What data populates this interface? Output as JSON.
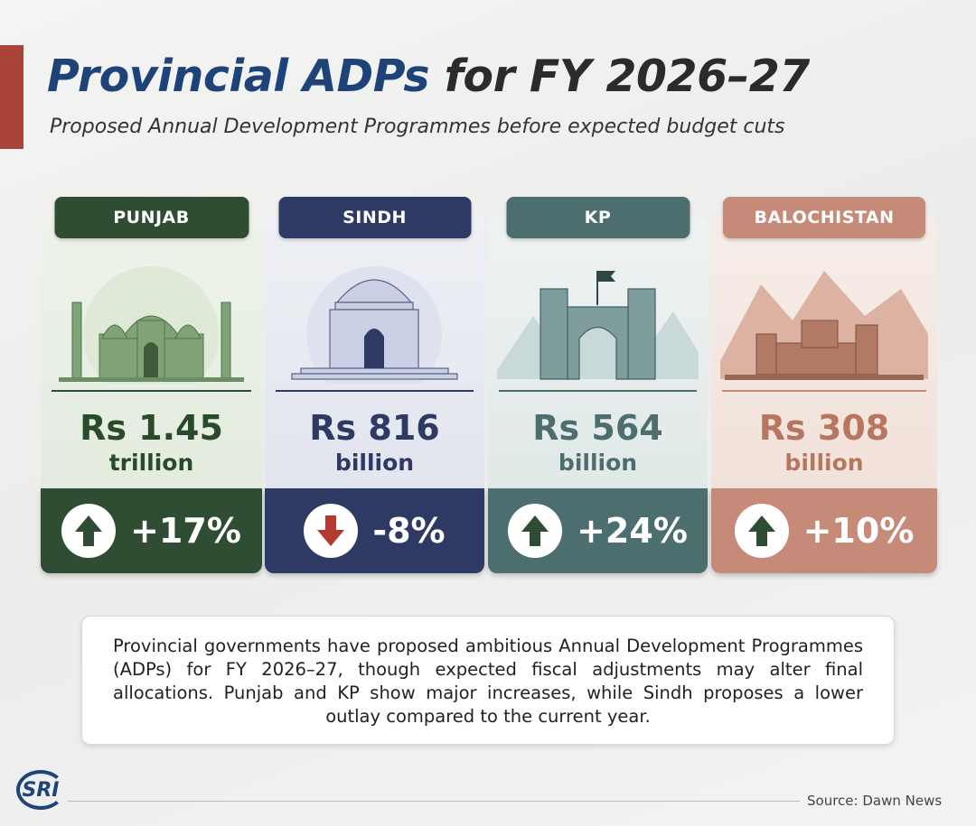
{
  "header": {
    "title_highlight": "Provincial ADPs",
    "title_rest": "for FY 2026–27",
    "subtitle": "Proposed Annual Development Programmes before expected budget cuts"
  },
  "cards": [
    {
      "province": "PUNJAB",
      "amount": "Rs 1.45",
      "unit": "trillion",
      "change": "+17%"
    },
    {
      "province": "SINDH",
      "amount": "Rs 816",
      "unit": "billion",
      "change": "-8%"
    },
    {
      "province": "KP",
      "amount": "Rs 564",
      "unit": "billion",
      "change": "+24%"
    },
    {
      "province": "BALOCHISTAN",
      "amount": "Rs 308",
      "unit": "billion",
      "change": "+10%"
    }
  ],
  "summary": "Provincial governments have proposed ambitious Annual Development Programmes (ADPs) for FY 2026–27, though expected fiscal adjustments may alter final allocations. Punjab and KP show major increases, while Sindh proposes a lower outlay compared to the current year.",
  "footer": {
    "logo": "SRI",
    "source": "Source: Dawn News"
  }
}
